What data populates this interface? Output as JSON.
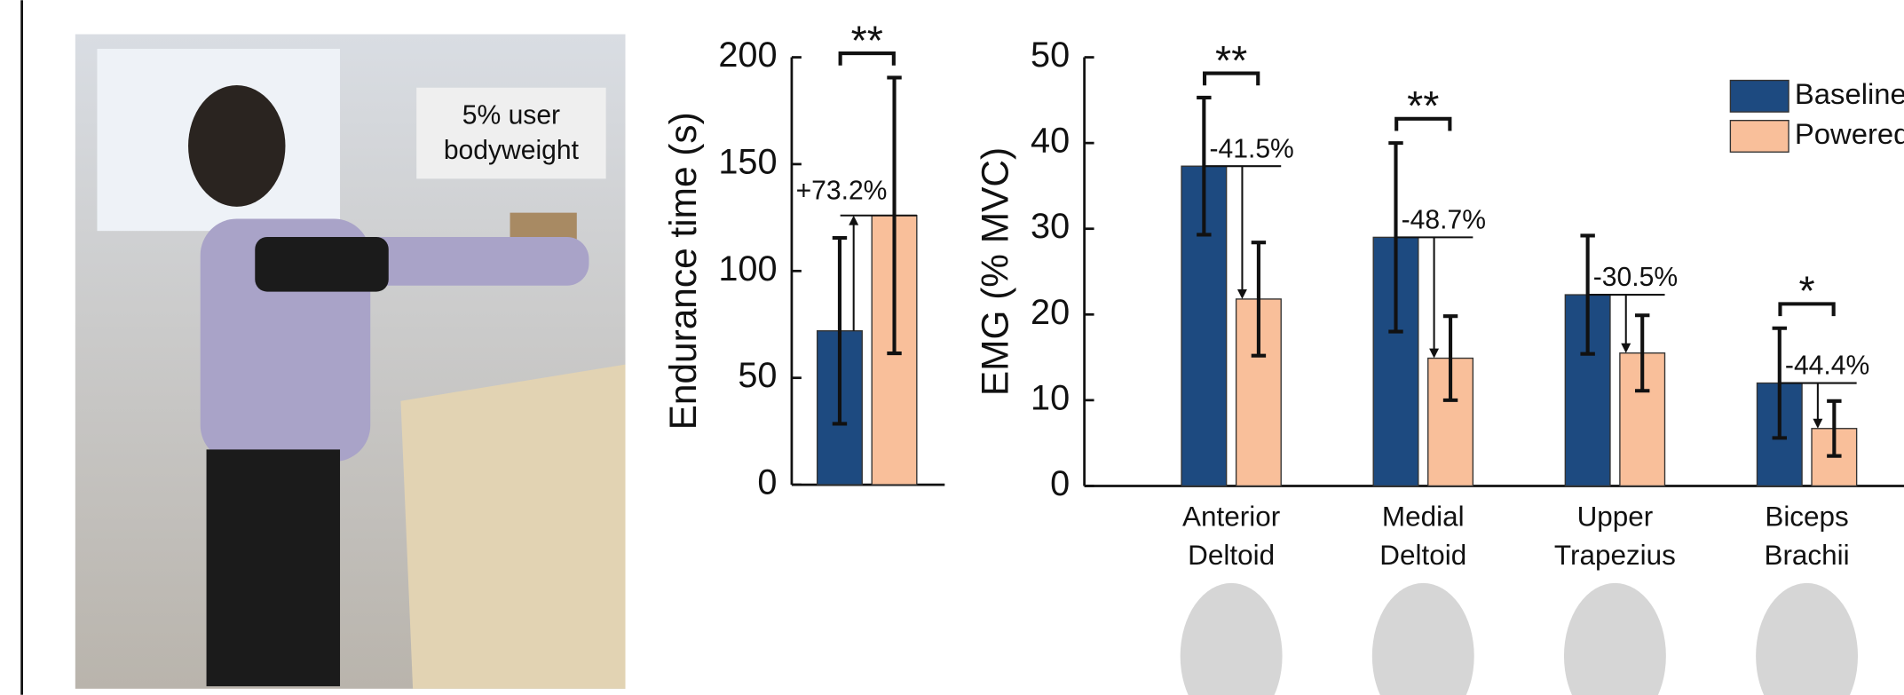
{
  "photo": {
    "label_lines": [
      "5% user",
      "bodyweight"
    ]
  },
  "chart_data": [
    {
      "type": "bar",
      "ylabel": "Endurance time (s)",
      "categories": [
        null
      ],
      "series": [
        {
          "name": "Baseline",
          "color": "#1d4a80",
          "values": [
            72
          ],
          "errors": [
            43.5
          ]
        },
        {
          "name": "Powered",
          "color": "#f9bf9a",
          "values": [
            126
          ],
          "errors": [
            64.5
          ]
        }
      ],
      "annotations": [
        "+73.2%"
      ],
      "significance": [
        "**"
      ],
      "ylim": [
        0,
        200
      ],
      "yticks": [
        0,
        50,
        100,
        150,
        200
      ]
    },
    {
      "type": "bar",
      "ylabel": "EMG (% MVC)",
      "categories": [
        "Anterior Deltoid",
        "Medial Deltoid",
        "Upper Trapezius",
        "Biceps Brachii"
      ],
      "series": [
        {
          "name": "Baseline",
          "color": "#1d4a80",
          "values": [
            37.3,
            29.0,
            22.3,
            12.0
          ],
          "errors": [
            8.0,
            11.0,
            6.9,
            6.4
          ]
        },
        {
          "name": "Powered",
          "color": "#f9bf9a",
          "values": [
            21.8,
            14.9,
            15.5,
            6.7
          ],
          "errors": [
            6.6,
            4.9,
            4.4,
            3.2
          ]
        }
      ],
      "annotations": [
        "-41.5%",
        "-48.7%",
        "-30.5%",
        "-44.4%"
      ],
      "significance": [
        "**",
        "**",
        null,
        "*"
      ],
      "ylim": [
        0,
        50
      ],
      "yticks": [
        0,
        10,
        20,
        30,
        40,
        50
      ],
      "legend": "top-right"
    }
  ]
}
